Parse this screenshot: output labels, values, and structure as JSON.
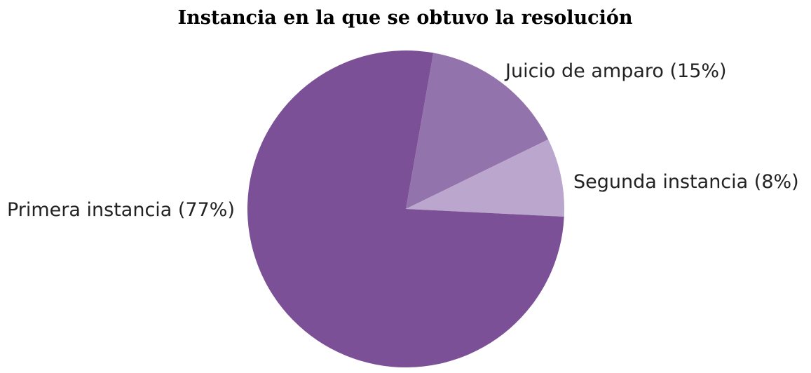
{
  "chart_data": {
    "type": "pie",
    "title": "Instancia en la que se obtuvo la resolución",
    "slices": [
      {
        "label": "Juicio de amparo (15%)",
        "value": 15,
        "color": "#9373ab"
      },
      {
        "label": "Segunda instancia (8%)",
        "value": 8,
        "color": "#bba7cd"
      },
      {
        "label": "Primera instancia (77%)",
        "value": 77,
        "color": "#7c5096"
      }
    ],
    "start_angle_deg": 10
  }
}
